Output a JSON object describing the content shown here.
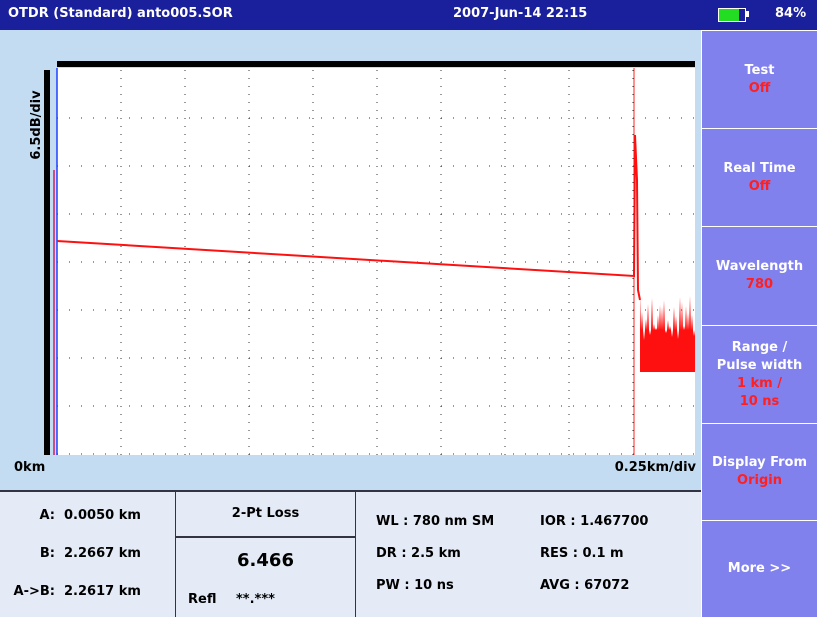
{
  "header": {
    "title": "OTDR (Standard) anto005.SOR",
    "datetime": "2007-Jun-14 22:15",
    "battery": "84%"
  },
  "plot": {
    "y_scale": "6.5dB/div",
    "x_start": "0km",
    "x_scale": "0.25km/div"
  },
  "menu": [
    {
      "label": "Test",
      "value": "Off"
    },
    {
      "label": "Real Time",
      "value": "Off"
    },
    {
      "label": "Wavelength",
      "value": "780"
    },
    {
      "label": "Range /",
      "label2": "Pulse width",
      "value": "1 km /",
      "value2": "10 ns"
    },
    {
      "label": "Display From",
      "value": "Origin"
    },
    {
      "label": "More >>"
    }
  ],
  "markers": [
    {
      "label": "A:",
      "value": "0.0050 km"
    },
    {
      "label": "B:",
      "value": "2.2667 km"
    },
    {
      "label": "A->B:",
      "value": "2.2617 km"
    }
  ],
  "loss": {
    "mode": "2-Pt Loss",
    "value": "6.466",
    "refl_label": "Refl",
    "refl_value": "**.***"
  },
  "info": [
    [
      "WL : 780 nm SM",
      "IOR : 1.467700"
    ],
    [
      "DR : 2.5 km",
      "RES : 0.1 m"
    ],
    [
      "PW : 10 ns",
      "AVG : 67072"
    ]
  ]
}
